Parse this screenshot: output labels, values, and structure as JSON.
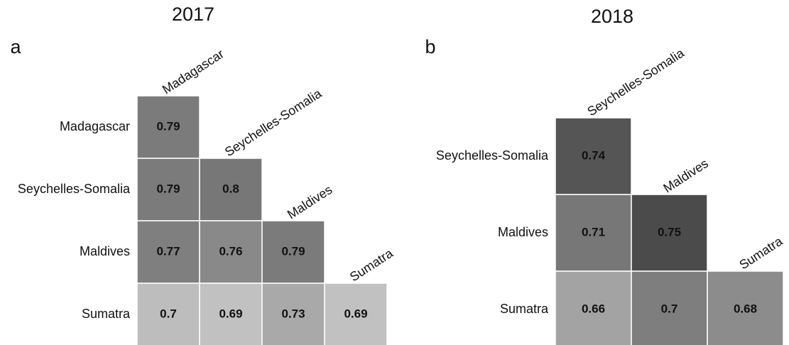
{
  "chart_data": [
    {
      "type": "heatmap",
      "title": "2017",
      "panel": "a",
      "rows": [
        "Madagascar",
        "Seychelles-Somalia",
        "Maldives",
        "Sumatra"
      ],
      "columns": [
        "Madagascar",
        "Seychelles-Somalia",
        "Maldives",
        "Sumatra"
      ],
      "values": [
        [
          0.79,
          null,
          null,
          null
        ],
        [
          0.79,
          0.8,
          null,
          null
        ],
        [
          0.77,
          0.76,
          0.79,
          null
        ],
        [
          0.7,
          0.69,
          0.73,
          0.69
        ]
      ],
      "colors": [
        [
          "#7b7b7b",
          null,
          null,
          null
        ],
        [
          "#7b7b7b",
          "#777777",
          null,
          null
        ],
        [
          "#7f7f7f",
          "#898989",
          "#7b7b7b",
          null
        ],
        [
          "#bdbdbd",
          "#c1c1c1",
          "#a9a9a9",
          "#c1c1c1"
        ]
      ]
    },
    {
      "type": "heatmap",
      "title": "2018",
      "panel": "b",
      "rows": [
        "Seychelles-Somalia",
        "Maldives",
        "Sumatra"
      ],
      "columns": [
        "Seychelles-Somalia",
        "Maldives",
        "Sumatra"
      ],
      "values": [
        [
          0.74,
          null,
          null
        ],
        [
          0.71,
          0.75,
          null
        ],
        [
          0.66,
          0.7,
          0.68
        ]
      ],
      "colors": [
        [
          "#555555",
          null,
          null
        ],
        [
          "#777777",
          "#4b4b4b",
          null
        ],
        [
          "#a3a3a3",
          "#7e7e7e",
          "#8c8c8c"
        ]
      ]
    }
  ]
}
